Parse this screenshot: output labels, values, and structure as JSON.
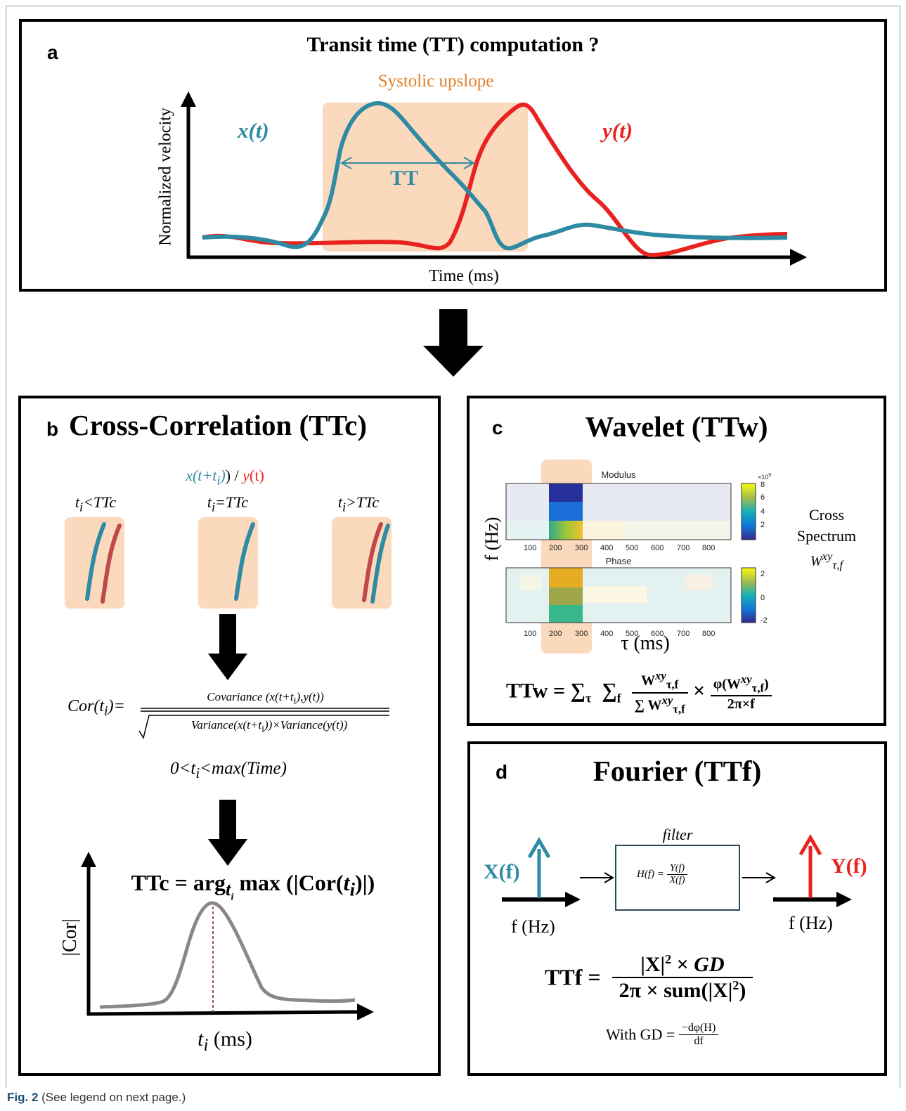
{
  "panel_a": {
    "label": "a",
    "title": "Transit time (TT) computation ?",
    "highlight_label": "Systolic upslope",
    "x_signal": "x(t)",
    "y_signal": "y(t)",
    "tt_label": "TT",
    "y_axis_label": "Normalized velocity",
    "x_axis_label": "Time (ms)"
  },
  "panel_b": {
    "label": "b",
    "title": "Cross-Correlation (TTc)",
    "shift_x": "x(t+t",
    "shift_i": "i",
    "shift_sep": ") / ",
    "shift_y": "y",
    "shift_t": "(t)",
    "cases": [
      "<TTc",
      "=TTc",
      ">TTc"
    ],
    "case_t": "t",
    "case_i": "i",
    "cor_lhs": "Cor(t",
    "cor_lhs_i": "i",
    "cor_lhs_end": ")=",
    "cor_num": "Covariance (x(t+t",
    "cor_num_i": "i",
    "cor_num_end": "),y(t))",
    "cor_den": "Variance(x(t+t",
    "cor_den_i": "i",
    "cor_den_end": "))×Variance(y(t))",
    "range_pre": "0<t",
    "range_i": "i",
    "range_post": "<max(Time)",
    "ttc_pre": "TTc = arg",
    "ttc_sub": "t",
    "ttc_sub_i": "i",
    "ttc_mid": " max (|Cor(",
    "ttc_t": "t",
    "ttc_i": "i",
    "ttc_end": ")|)",
    "y_axis_label": "|Cor|",
    "x_axis_t": "t",
    "x_axis_i": "i",
    "x_axis_unit": " (ms)"
  },
  "panel_c": {
    "label": "c",
    "title": "Wavelet (TTw)",
    "modulus_title": "Modulus",
    "phase_title": "Phase",
    "x_ticks": [
      "100",
      "200",
      "300",
      "400",
      "500",
      "600",
      "700",
      "800"
    ],
    "modulus_cbar_ticks": [
      "8",
      "6",
      "4",
      "2"
    ],
    "modulus_cbar_exp": "×10",
    "modulus_cbar_exp_sup": "5",
    "phase_cbar_ticks": [
      "2",
      "0",
      "-2"
    ],
    "y_axis_label": "f (Hz)",
    "x_axis_label": "τ (ms)",
    "cross_line1": "Cross",
    "cross_line2": "Spectrum",
    "cross_symbol": "W",
    "cross_sup": "xy",
    "cross_sub": "τ,f",
    "ttw_lhs": "TTw = ∑",
    "ttw_sum_tau": "τ",
    "ttw_sum": "∑",
    "ttw_sum_f": "f",
    "ttw_W": "W",
    "ttw_xy": "xy",
    "ttw_tf": "τ,f",
    "ttw_den_sum": "∑ W",
    "ttw_times": "×",
    "ttw_phi": "φ(W",
    "ttw_phi_end": ")",
    "ttw_2pif": "2π×f"
  },
  "panel_d": {
    "label": "d",
    "title": "Fourier (TTf)",
    "filter_label": "filter",
    "h_lhs": "H(f) =",
    "h_num": "Y(f)",
    "h_den": "X(f)",
    "X_label": "X(f)",
    "Y_label": "Y(f)",
    "fx_label": "f (Hz)",
    "fy_label": "f (Hz)",
    "ttf_lhs": "TTf =",
    "ttf_num_pre": "|X|",
    "ttf_num_sup": "2",
    "ttf_num_post": " × ",
    "ttf_num_gd": "GD",
    "ttf_den_pre": "2π × sum(|X|",
    "ttf_den_sup": "2",
    "ttf_den_post": ")",
    "gd_pre": "With GD =",
    "gd_num": "−dφ(H)",
    "gd_den": "df"
  },
  "caption": {
    "fig": "Fig. 2",
    "text": " (See legend on next page.)"
  },
  "colors": {
    "x_signal": "#2f8aa4",
    "y_signal": "#e8231f",
    "highlight": "#fbd9bd",
    "correlation": "#888888"
  }
}
